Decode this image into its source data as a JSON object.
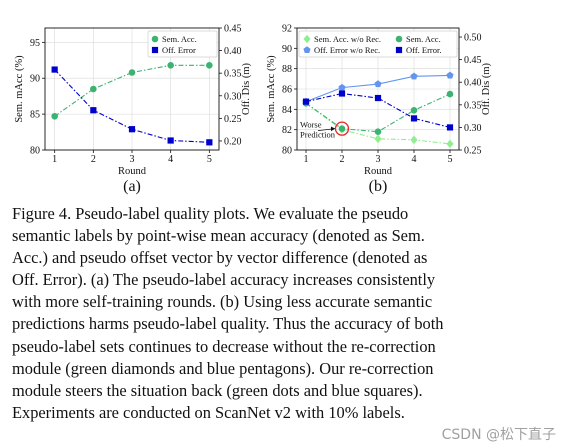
{
  "caption": {
    "lines": [
      "Figure 4.  Pseudo-label quality plots.  We evaluate the pseudo",
      "semantic labels by point-wise mean accuracy (denoted as Sem.",
      "Acc.) and pseudo offset vector by vector difference (denoted as",
      "Off. Error). (a) The pseudo-label accuracy increases consistently",
      "with more self-training rounds. (b) Using less accurate semantic",
      "predictions harms pseudo-label quality. Thus the accuracy of both",
      "pseudo-label sets continues to decrease without the re-correction",
      "module (green diamonds and blue pentagons). Our re-correction",
      "module steers the situation back (green dots and blue squares).",
      "Experiments are conducted on ScanNet v2 with 10% labels."
    ]
  },
  "watermark": "CSDN @松下直子",
  "colors": {
    "sem_green": "#3cb371",
    "sem_green_light": "#90ee90",
    "off_blue": "#0000cd",
    "off_blue_light": "#6495ed",
    "highlight_red": "#e8262a"
  },
  "chart_data": [
    {
      "type": "line",
      "panel_label": "(a)",
      "xlabel": "Round",
      "ylabel_left": "Sem. mAcc (%)",
      "ylabel_right": "Off. Dis (m)",
      "x": [
        1,
        2,
        3,
        4,
        5
      ],
      "ylim_left": [
        80,
        97
      ],
      "ylim_right": [
        0.18,
        0.45
      ],
      "yticks_left": [
        80,
        85,
        90,
        95
      ],
      "yticks_right": [
        0.2,
        0.25,
        0.3,
        0.35,
        0.4,
        0.45
      ],
      "grid": true,
      "legend_position": "top-right",
      "series": [
        {
          "name": "Sem. Acc.",
          "axis": "left",
          "marker": "circle",
          "line": "dashdot",
          "color": "#3cb371",
          "values": [
            84.7,
            88.5,
            90.8,
            91.8,
            91.8
          ]
        },
        {
          "name": "Off. Error",
          "axis": "right",
          "marker": "square",
          "line": "dashdot",
          "color": "#0000cd",
          "values": [
            0.358,
            0.268,
            0.226,
            0.201,
            0.197
          ]
        }
      ]
    },
    {
      "type": "line",
      "panel_label": "(b)",
      "xlabel": "Round",
      "ylabel_left": "Sem. mAcc (%)",
      "ylabel_right": "Off. Dis (m)",
      "x": [
        1,
        2,
        3,
        4,
        5
      ],
      "ylim_left": [
        80,
        92
      ],
      "ylim_right": [
        0.25,
        0.52
      ],
      "yticks_left": [
        80,
        82,
        84,
        86,
        88,
        90,
        92
      ],
      "yticks_right": [
        0.25,
        0.3,
        0.35,
        0.4,
        0.45,
        0.5
      ],
      "grid": true,
      "legend_position": "top",
      "annotation": {
        "text": [
          "Worse",
          "Prediction"
        ],
        "at_x": 2
      },
      "series": [
        {
          "name": "Sem. Acc. w/o Rec.",
          "axis": "left",
          "marker": "diamond",
          "line": "dashdot",
          "color": "#90ee90",
          "values": [
            84.6,
            82.0,
            81.1,
            81.0,
            80.6
          ]
        },
        {
          "name": "Sem. Acc.",
          "axis": "left",
          "marker": "circle",
          "line": "dashdot",
          "color": "#3cb371",
          "values": [
            84.6,
            82.1,
            81.8,
            83.9,
            85.5
          ]
        },
        {
          "name": "Off. Error w/o Rec.",
          "axis": "right",
          "marker": "pentagon",
          "line": "solid",
          "color": "#6495ed",
          "values": [
            0.357,
            0.388,
            0.396,
            0.413,
            0.415
          ]
        },
        {
          "name": "Off. Error.",
          "axis": "right",
          "marker": "square",
          "line": "dashdot",
          "color": "#0000cd",
          "values": [
            0.357,
            0.375,
            0.365,
            0.32,
            0.3
          ]
        }
      ]
    }
  ]
}
